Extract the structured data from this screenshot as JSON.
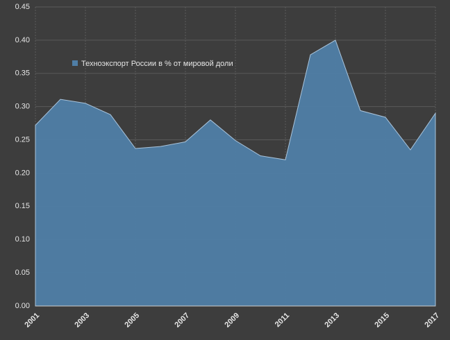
{
  "chart_data": {
    "type": "area",
    "x": [
      2001,
      2002,
      2003,
      2004,
      2005,
      2006,
      2007,
      2008,
      2009,
      2010,
      2011,
      2012,
      2013,
      2014,
      2015,
      2016,
      2017
    ],
    "series": [
      {
        "name": "Техноэкспорт России в % от мировой доли",
        "color": "#4f7ea6",
        "values": [
          0.272,
          0.311,
          0.305,
          0.288,
          0.237,
          0.24,
          0.247,
          0.28,
          0.249,
          0.226,
          0.22,
          0.378,
          0.4,
          0.294,
          0.284,
          0.235,
          0.29
        ]
      }
    ],
    "xlim": [
      2001,
      2017
    ],
    "xticks": [
      2001,
      2003,
      2005,
      2007,
      2009,
      2011,
      2013,
      2015,
      2017
    ],
    "ylim": [
      0,
      0.45
    ],
    "yticks": [
      {
        "value": 0,
        "label": "0.00"
      },
      {
        "value": 0.05,
        "label": "0.05"
      },
      {
        "value": 0.1,
        "label": "0.10"
      },
      {
        "value": 0.15,
        "label": "0.15"
      },
      {
        "value": 0.2,
        "label": "0.20"
      },
      {
        "value": 0.25,
        "label": "0.25"
      },
      {
        "value": 0.3,
        "label": "0.30"
      },
      {
        "value": 0.35,
        "label": "0.35"
      },
      {
        "value": 0.4,
        "label": "0.40"
      },
      {
        "value": 0.45,
        "label": "0.45"
      }
    ],
    "grid": true
  }
}
